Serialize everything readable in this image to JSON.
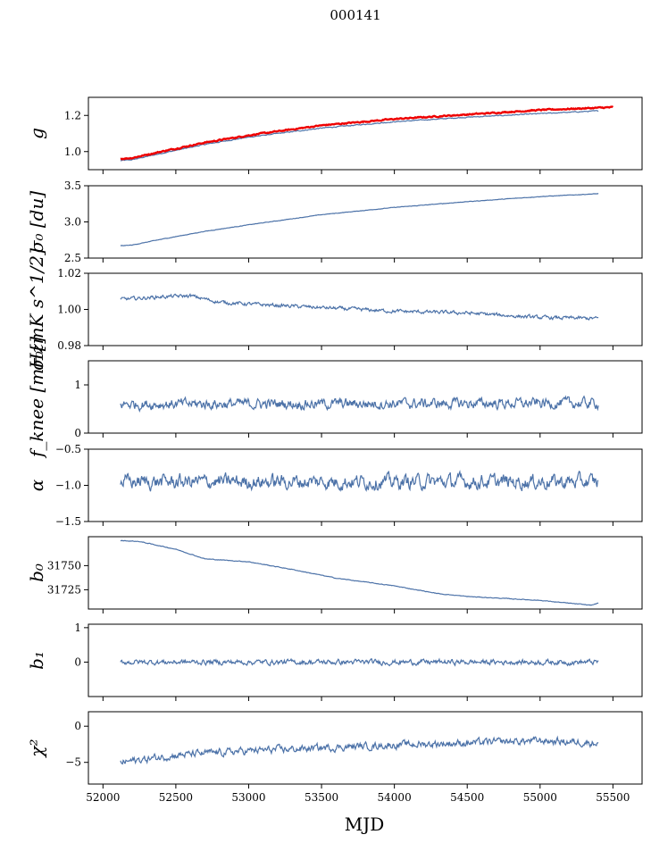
{
  "figure": {
    "title": "000141",
    "xlabel": "MJD"
  },
  "colors": {
    "series": "#4c72a8",
    "fit": "#ee0000",
    "axis": "#000000"
  },
  "chart_data": [
    {
      "type": "line",
      "ylabel": "g",
      "xlim": [
        51900,
        55700
      ],
      "ylim": [
        0.9,
        1.3
      ],
      "yticks": [
        1.0,
        1.2
      ],
      "ytick_labels": [
        "1.0",
        "1.2"
      ],
      "series": [
        {
          "x": [
            52120,
            52200,
            52400,
            52700,
            53000,
            53500,
            54000,
            54500,
            55000,
            55400
          ],
          "values": [
            0.95,
            0.955,
            0.99,
            1.04,
            1.08,
            1.13,
            1.165,
            1.19,
            1.21,
            1.225
          ],
          "noise": 0.003,
          "color": "#4c72a8"
        },
        {
          "x": [
            52120,
            52200,
            52400,
            52700,
            53000,
            53500,
            54000,
            54500,
            55000,
            55500
          ],
          "values": [
            0.96,
            0.965,
            1.0,
            1.05,
            1.09,
            1.145,
            1.18,
            1.205,
            1.23,
            1.245
          ],
          "noise": 0.004,
          "color": "#ee0000",
          "width": 2.4
        }
      ]
    },
    {
      "type": "line",
      "ylabel": "σ₀ [du]",
      "xlim": [
        51900,
        55700
      ],
      "ylim": [
        2.5,
        3.5
      ],
      "yticks": [
        2.5,
        3.0,
        3.5
      ],
      "ytick_labels": [
        "2.5",
        "3.0",
        "3.5"
      ],
      "series": [
        {
          "x": [
            52120,
            52200,
            52400,
            52700,
            53000,
            53500,
            54000,
            54500,
            55000,
            55400
          ],
          "values": [
            2.67,
            2.68,
            2.76,
            2.87,
            2.96,
            3.1,
            3.2,
            3.28,
            3.35,
            3.39
          ],
          "noise": 0.004,
          "color": "#4c72a8"
        }
      ]
    },
    {
      "type": "line",
      "ylabel": "σ₀[mK s^1/2]",
      "xlim": [
        51900,
        55700
      ],
      "ylim": [
        0.98,
        1.02
      ],
      "yticks": [
        0.98,
        1.0,
        1.02
      ],
      "ytick_labels": [
        "0.98",
        "1.00",
        "1.02"
      ],
      "series": [
        {
          "x": [
            52120,
            52400,
            52600,
            52800,
            53000,
            53500,
            54000,
            54500,
            55000,
            55400
          ],
          "values": [
            1.0055,
            1.007,
            1.0075,
            1.004,
            1.003,
            1.001,
            0.999,
            0.998,
            0.9955,
            0.995
          ],
          "noise": 0.0012,
          "color": "#4c72a8"
        }
      ]
    },
    {
      "type": "line",
      "ylabel": "f_knee [mHz]",
      "xlim": [
        51900,
        55700
      ],
      "ylim": [
        0,
        1.5
      ],
      "yticks": [
        0,
        1
      ],
      "ytick_labels": [
        "0",
        "1"
      ],
      "series": [
        {
          "x": [
            52120,
            55400
          ],
          "values": [
            0.6,
            0.62
          ],
          "noise": 0.13,
          "color": "#4c72a8"
        }
      ]
    },
    {
      "type": "line",
      "ylabel": "α",
      "xlim": [
        51900,
        55700
      ],
      "ylim": [
        -1.5,
        -0.5
      ],
      "yticks": [
        -1.5,
        -1.0,
        -0.5
      ],
      "ytick_labels": [
        "−1.5",
        "−1.0",
        "−0.5"
      ],
      "series": [
        {
          "x": [
            52120,
            55400
          ],
          "values": [
            -0.95,
            -0.95
          ],
          "noise": 0.12,
          "color": "#4c72a8"
        }
      ]
    },
    {
      "type": "line",
      "ylabel": "b₀",
      "xlim": [
        51900,
        55700
      ],
      "ylim": [
        31705,
        31780
      ],
      "yticks": [
        31725,
        31750
      ],
      "ytick_labels": [
        "31725",
        "31750"
      ],
      "series": [
        {
          "x": [
            52120,
            52250,
            52500,
            52700,
            53000,
            53300,
            53600,
            54000,
            54300,
            54500,
            55000,
            55200,
            55350,
            55400
          ],
          "values": [
            31776,
            31775,
            31767,
            31757,
            31754,
            31746,
            31737,
            31729,
            31721,
            31718,
            31714,
            31711,
            31709,
            31711
          ],
          "noise": 0.4,
          "color": "#4c72a8"
        }
      ]
    },
    {
      "type": "line",
      "ylabel": "b₁",
      "xlim": [
        51900,
        55700
      ],
      "ylim": [
        -1.0,
        1.1
      ],
      "yticks": [
        0,
        1
      ],
      "ytick_labels": [
        "0",
        "1"
      ],
      "series": [
        {
          "x": [
            52120,
            55400
          ],
          "values": [
            0.0,
            0.0
          ],
          "noise": 0.09,
          "color": "#4c72a8"
        }
      ]
    },
    {
      "type": "line",
      "ylabel": "χ²",
      "xlim": [
        51900,
        55700
      ],
      "ylim": [
        -8,
        2
      ],
      "yticks": [
        -5,
        0
      ],
      "ytick_labels": [
        "−5",
        "0"
      ],
      "xticks": [
        52000,
        52500,
        53000,
        53500,
        54000,
        54500,
        55000,
        55500
      ],
      "xtick_labels": [
        "52000",
        "52500",
        "53000",
        "53500",
        "54000",
        "54500",
        "55000",
        "55500"
      ],
      "series": [
        {
          "x": [
            52120,
            52500,
            53000,
            53500,
            54000,
            54500,
            55000,
            55400
          ],
          "values": [
            -5.0,
            -4.0,
            -3.4,
            -3.0,
            -2.6,
            -2.3,
            -2.0,
            -2.3
          ],
          "noise": 0.6,
          "color": "#4c72a8"
        }
      ]
    }
  ]
}
